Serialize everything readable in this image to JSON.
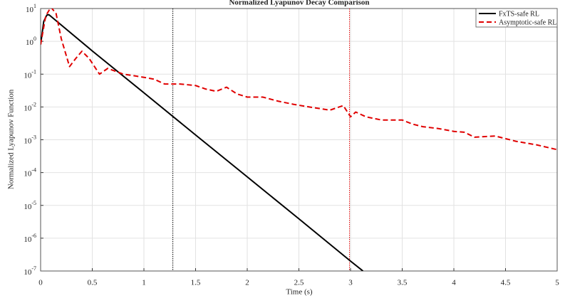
{
  "chart_data": {
    "type": "line",
    "title": "Normalized Lyapunov Decay Comparison",
    "xlabel": "Time (s)",
    "ylabel": "Normalized Lyapunov Function",
    "log_y": true,
    "grid": true,
    "legend": "upper right",
    "xlim": [
      0,
      5
    ],
    "xticks": [
      0,
      0.5,
      1,
      1.5,
      2,
      2.5,
      3,
      3.5,
      4,
      4.5,
      5
    ],
    "ylim": [
      1e-07,
      10
    ],
    "yticks": [
      {
        "value": 1e-07,
        "label": "10^-7"
      },
      {
        "value": 1e-06,
        "label": "10^-6"
      },
      {
        "value": 1e-05,
        "label": "10^-5"
      },
      {
        "value": 0.0001,
        "label": "10^-4"
      },
      {
        "value": 0.001,
        "label": "10^-3"
      },
      {
        "value": 0.01,
        "label": "10^-2"
      },
      {
        "value": 0.1,
        "label": "10^-1"
      },
      {
        "value": 1,
        "label": "10^0"
      },
      {
        "value": 10,
        "label": "10^1"
      }
    ],
    "vlines": [
      {
        "x": 1.28,
        "color": "#000000"
      },
      {
        "x": 2.99,
        "color": "#e00000"
      }
    ],
    "series": [
      {
        "name": "FxTS-safe RL",
        "color": "#000000",
        "dash": false,
        "x": [
          0,
          0.03,
          0.06,
          0.08,
          0.5,
          1,
          1.5,
          2,
          2.5,
          3,
          3.12
        ],
        "values": [
          0.8,
          4,
          6.3,
          6.5,
          0.51,
          0.027,
          0.0014,
          7.4e-05,
          3.9e-06,
          2e-07,
          1e-07
        ]
      },
      {
        "name": "Asymptotic-safe RL",
        "color": "#e00000",
        "dash": true,
        "x": [
          0,
          0.05,
          0.1,
          0.15,
          0.2,
          0.28,
          0.34,
          0.4,
          0.47,
          0.57,
          0.65,
          0.8,
          0.9,
          1,
          1.1,
          1.2,
          1.35,
          1.5,
          1.6,
          1.7,
          1.8,
          1.9,
          2,
          2.15,
          2.3,
          2.45,
          2.6,
          2.8,
          2.93,
          3,
          3.05,
          3.15,
          3.3,
          3.5,
          3.6,
          3.7,
          3.85,
          4,
          4.1,
          4.2,
          4.4,
          4.6,
          4.8,
          5
        ],
        "values": [
          0.8,
          6,
          11,
          7,
          1.2,
          0.17,
          0.3,
          0.5,
          0.3,
          0.1,
          0.15,
          0.1,
          0.09,
          0.08,
          0.07,
          0.05,
          0.05,
          0.045,
          0.035,
          0.03,
          0.04,
          0.025,
          0.02,
          0.02,
          0.015,
          0.012,
          0.01,
          0.008,
          0.011,
          0.005,
          0.007,
          0.005,
          0.004,
          0.004,
          0.003,
          0.0025,
          0.0022,
          0.0018,
          0.0017,
          0.0012,
          0.0013,
          0.0009,
          0.0007,
          0.0005
        ]
      }
    ]
  }
}
